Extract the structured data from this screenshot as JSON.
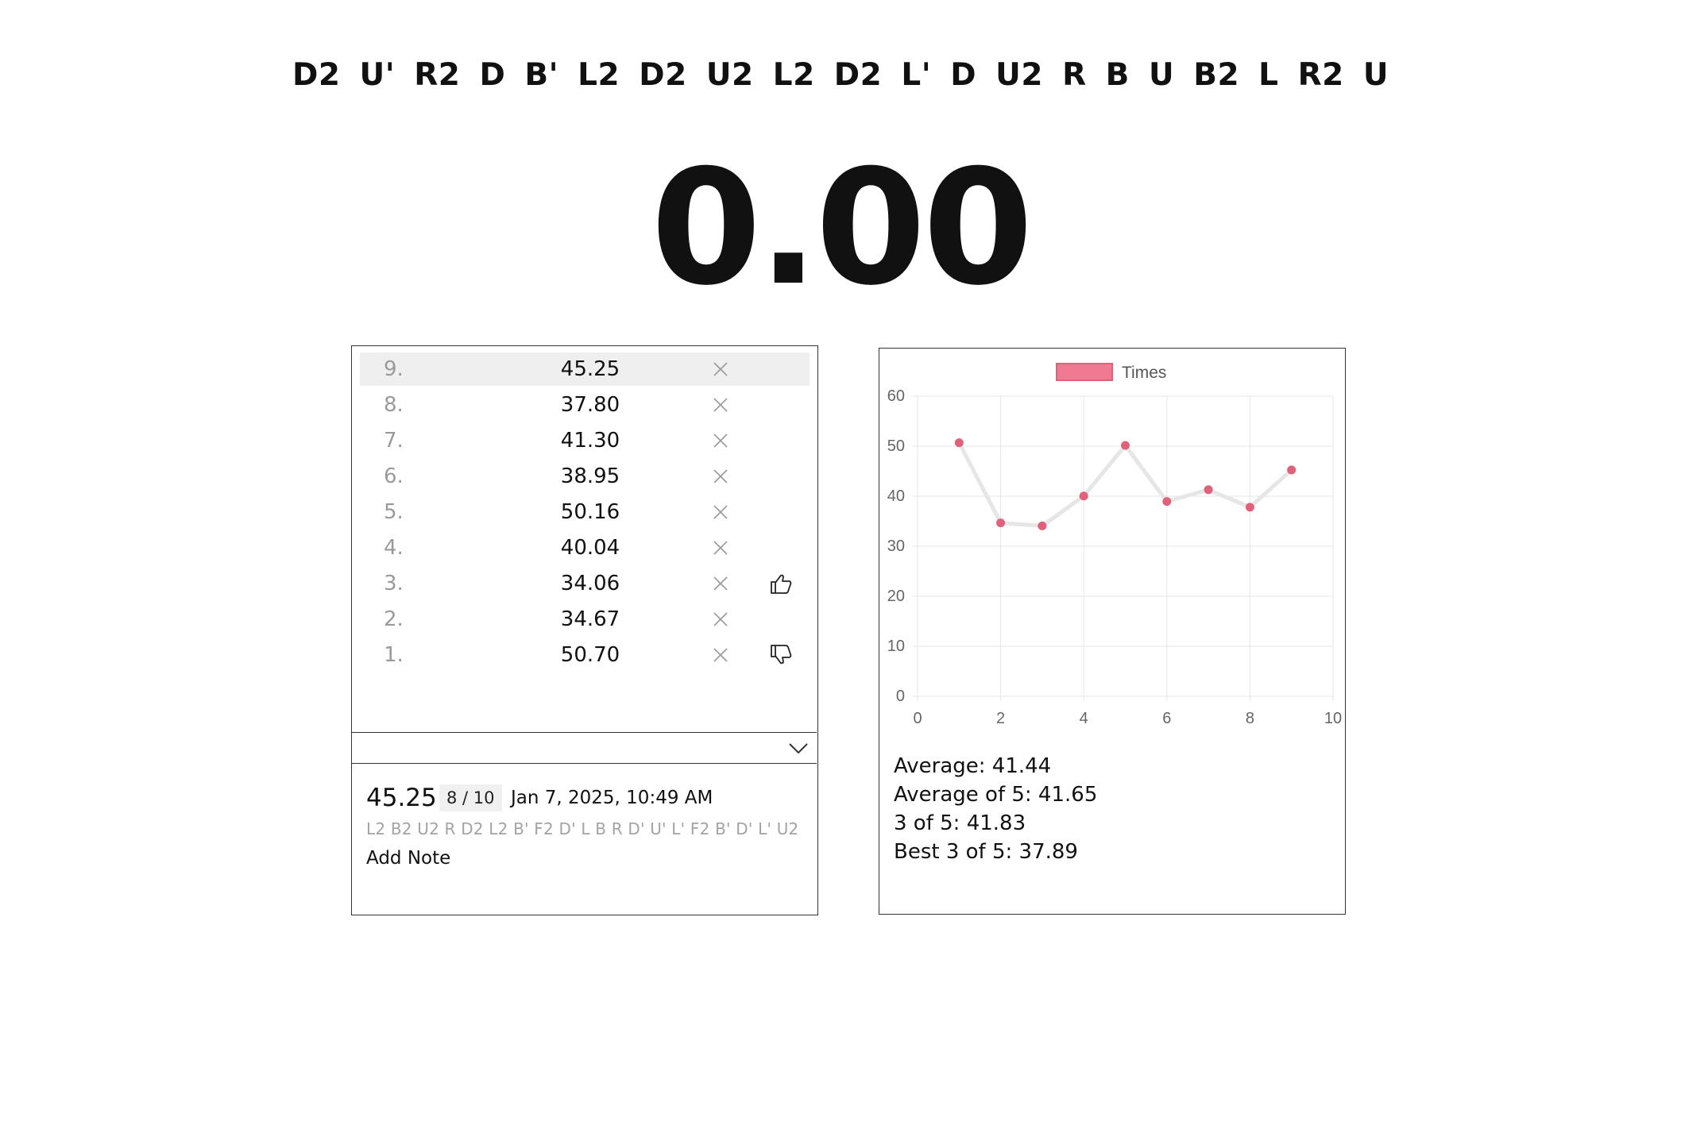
{
  "scramble": "D2 U' R2 D B' L2 D2 U2 L2 D2 L' D U2 R B U B2 L R2 U",
  "timer": "0.00",
  "times": [
    {
      "index": "9.",
      "value": "45.25",
      "selected": true,
      "rating": ""
    },
    {
      "index": "8.",
      "value": "37.80",
      "selected": false,
      "rating": ""
    },
    {
      "index": "7.",
      "value": "41.30",
      "selected": false,
      "rating": ""
    },
    {
      "index": "6.",
      "value": "38.95",
      "selected": false,
      "rating": ""
    },
    {
      "index": "5.",
      "value": "50.16",
      "selected": false,
      "rating": ""
    },
    {
      "index": "4.",
      "value": "40.04",
      "selected": false,
      "rating": ""
    },
    {
      "index": "3.",
      "value": "34.06",
      "selected": false,
      "rating": "thumbs-up-icon"
    },
    {
      "index": "2.",
      "value": "34.67",
      "selected": false,
      "rating": ""
    },
    {
      "index": "1.",
      "value": "50.70",
      "selected": false,
      "rating": "thumbs-down-icon"
    }
  ],
  "detail": {
    "time": "45.25",
    "badge": "8 / 10",
    "date": "Jan 7, 2025, 10:49 AM",
    "scramble": "L2 B2 U2 R D2 L2 B' F2 D' L B R D' U' L' F2 B' D' L' U2",
    "add_note": "Add Note"
  },
  "stats": {
    "average": "Average: 41.44",
    "average_of_5": "Average of 5: 41.65",
    "three_of_5": "3 of 5: 41.83",
    "best_3_of_5": "Best 3 of 5: 37.89"
  },
  "chart_data": {
    "type": "line",
    "title": "",
    "xlabel": "",
    "ylabel": "",
    "x": [
      1,
      2,
      3,
      4,
      5,
      6,
      7,
      8,
      9
    ],
    "series": [
      {
        "name": "Times",
        "values": [
          50.7,
          34.67,
          34.06,
          40.04,
          50.16,
          38.95,
          41.3,
          37.8,
          45.25
        ]
      }
    ],
    "xlim": [
      0,
      10
    ],
    "ylim": [
      0,
      60
    ],
    "x_ticks": [
      "0",
      "2",
      "4",
      "6",
      "8",
      "10"
    ],
    "y_ticks": [
      "0",
      "10",
      "20",
      "30",
      "40",
      "50",
      "60"
    ],
    "grid": true,
    "legend": "top-center",
    "colors": {
      "point": "#e0627a",
      "legend_fill": "#f07a91",
      "line": "#e6e6e6",
      "grid": "#e6e6e6"
    }
  }
}
